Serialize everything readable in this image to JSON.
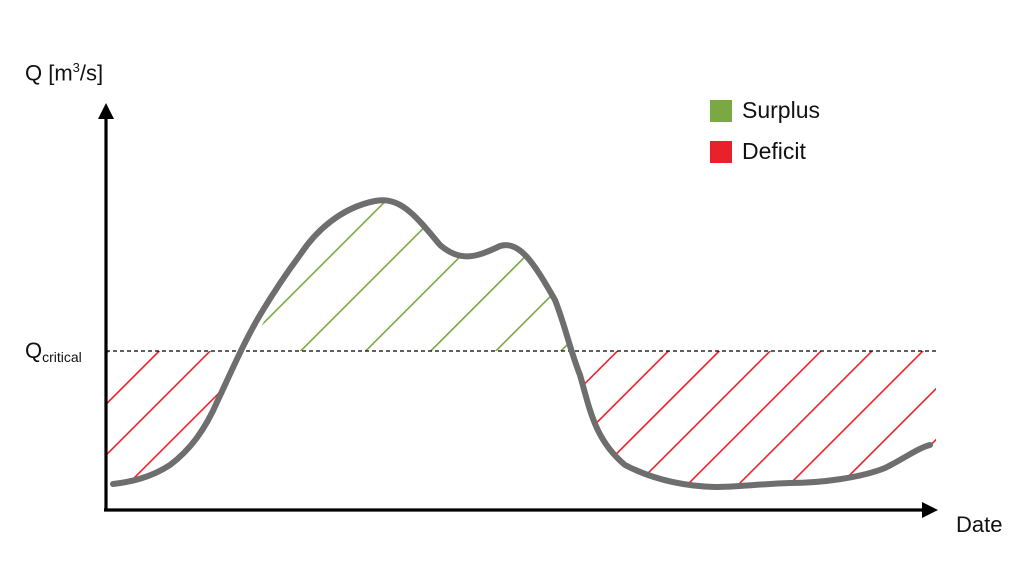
{
  "diagram": {
    "y_axis_label_prefix": "Q [m",
    "y_axis_label_sup": "3",
    "y_axis_label_suffix": "/s]",
    "x_axis_label": "Date",
    "threshold_label_main": "Q",
    "threshold_label_sub": "critical"
  },
  "legend": {
    "items": [
      {
        "label": "Surplus",
        "color": "#7aa843"
      },
      {
        "label": "Deficit",
        "color": "#e8212a"
      }
    ]
  },
  "colors": {
    "curve": "#6e6e6e",
    "axis": "#000000",
    "threshold": "#000000",
    "surplus": "#7aa843",
    "deficit": "#e8212a"
  }
}
